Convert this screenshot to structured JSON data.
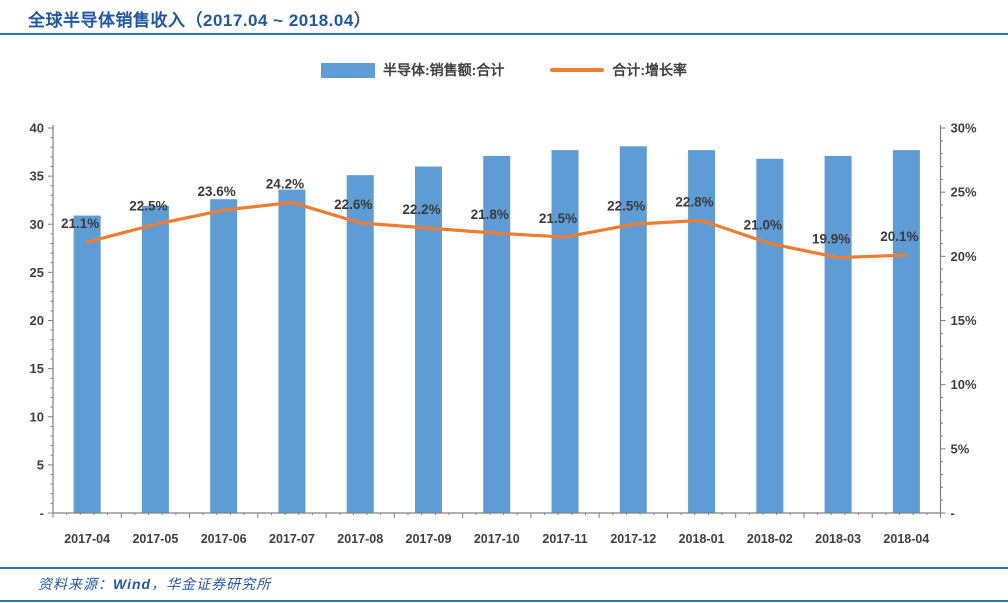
{
  "title": "全球半导体销售收入（2017.04 ~ 2018.04）",
  "legend": {
    "items": [
      {
        "label": "半导体:销售额:合计",
        "type": "bar",
        "color": "#5e9cd5"
      },
      {
        "label": "合计:增长率",
        "type": "line",
        "color": "#ed7d31"
      }
    ]
  },
  "footer": {
    "prefix": "资料来源：",
    "source": "Wind",
    "suffix": "，华金证券研究所"
  },
  "colors": {
    "bar": "#5e9cd5",
    "line": "#ed7d31",
    "axis": "#808080",
    "tick_label": "#3f3f3f",
    "data_label": "#3a3a3a",
    "title_blue": "#1f57a5",
    "rule_blue": "#2e74b5"
  },
  "chart_data": {
    "type": "bar",
    "title": "全球半导体销售收入（2017.04 ~ 2018.04）",
    "categories": [
      "2017-04",
      "2017-05",
      "2017-06",
      "2017-07",
      "2017-08",
      "2017-09",
      "2017-10",
      "2017-11",
      "2017-12",
      "2018-01",
      "2018-02",
      "2018-03",
      "2018-04"
    ],
    "series": [
      {
        "name": "半导体:销售额:合计",
        "type": "bar",
        "axis": "left",
        "color": "#5e9cd5",
        "values": [
          30.9,
          31.9,
          32.6,
          33.6,
          35.1,
          36.0,
          37.1,
          37.7,
          38.1,
          37.7,
          36.8,
          37.1,
          37.7
        ]
      },
      {
        "name": "合计:增长率",
        "type": "line",
        "axis": "right",
        "color": "#ed7d31",
        "values": [
          21.1,
          22.5,
          23.6,
          24.2,
          22.6,
          22.2,
          21.8,
          21.5,
          22.5,
          22.8,
          21.0,
          19.9,
          20.1
        ],
        "point_labels": [
          "21.1%",
          "22.5%",
          "23.6%",
          "24.2%",
          "22.6%",
          "22.2%",
          "21.8%",
          "21.5%",
          "22.5%",
          "22.8%",
          "21.0%",
          "19.9%",
          "20.1%"
        ]
      }
    ],
    "left_axis": {
      "min": 0,
      "max": 40,
      "major_step": 5,
      "tick_labels": [
        "-",
        "5",
        "10",
        "15",
        "20",
        "25",
        "30",
        "35",
        "40"
      ]
    },
    "right_axis": {
      "min": 0,
      "max": 30,
      "major_step": 5,
      "tick_labels": [
        "-",
        "5%",
        "10%",
        "15%",
        "20%",
        "25%",
        "30%"
      ]
    },
    "grid": false,
    "legend_position": "top"
  }
}
